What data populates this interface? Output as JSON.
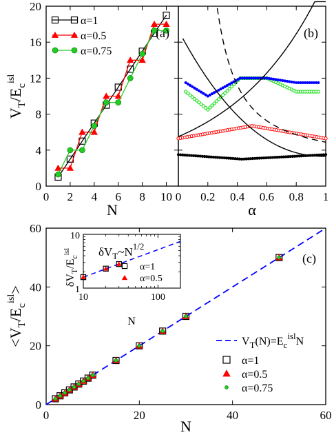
{
  "chart_data": [
    {
      "id": "a",
      "type": "line",
      "panel_label": "(a)",
      "xlabel": "N",
      "ylabel_main": "V",
      "ylabel_sub": "T",
      "ylabel_mid": "/E",
      "ylabel_sub2": "c",
      "ylabel_sup": "isl",
      "xlim": [
        0,
        11
      ],
      "ylim": [
        0,
        20
      ],
      "xticks": [
        0,
        2,
        4,
        6,
        8,
        10
      ],
      "yticks": [
        0,
        4,
        8,
        12,
        16,
        20
      ],
      "legend_position": "top-left",
      "series": [
        {
          "name": "α=1",
          "color": "#000000",
          "marker": "open-square",
          "x": [
            1,
            2,
            3,
            4,
            5,
            6,
            7,
            8,
            9,
            10
          ],
          "y": [
            1,
            3,
            5,
            7,
            9,
            11,
            13,
            15,
            17,
            19
          ]
        },
        {
          "name": "α=0.5",
          "color": "#ff0000",
          "marker": "filled-triangle",
          "x": [
            1,
            2,
            3,
            4,
            5,
            6,
            7,
            8,
            9,
            10
          ],
          "y": [
            2,
            2,
            6,
            6,
            10,
            10,
            14,
            14,
            18,
            18
          ]
        },
        {
          "name": "α=0.75",
          "color": "#22cc22",
          "marker": "filled-circle",
          "x": [
            1,
            2,
            3,
            4,
            5,
            6,
            7,
            8,
            9,
            10
          ],
          "y": [
            1.3,
            4,
            4,
            6.7,
            9.3,
            9.3,
            12,
            14.7,
            17.3,
            17.3
          ]
        }
      ]
    },
    {
      "id": "b",
      "type": "scatter",
      "panel_label": "(b)",
      "xlabel": "α",
      "xlim": [
        0,
        1
      ],
      "ylim": [
        0,
        20
      ],
      "xticks": [
        0,
        0.2,
        0.4,
        0.6,
        0.8,
        1
      ],
      "xtick_labels": [
        "0",
        "0.2",
        "0.4",
        "0.6",
        "0.8",
        "1"
      ],
      "dot_series": [
        {
          "color": "#000000",
          "filled": true,
          "note": "N=1 (black)",
          "x": [
            0,
            0.43,
            1
          ],
          "y": [
            3.5,
            3,
            3.5
          ],
          "peaks_y": 3.0,
          "edge_y": 3.5
        },
        {
          "color": "#ff0000",
          "filled": false,
          "note": "N=2 (red)",
          "x": [
            0,
            0.5,
            1
          ],
          "y": [
            5.3,
            6.7,
            5.3
          ]
        },
        {
          "color": "#00dd00",
          "filled": false,
          "note": "N=3 (green)",
          "x": [
            0.05,
            0.2,
            0.42,
            0.6,
            0.8,
            0.95
          ],
          "y": [
            10.5,
            8.5,
            12,
            12,
            10.5,
            10.5
          ]
        },
        {
          "color": "#0000ff",
          "filled": true,
          "note": "N=4 (blue)",
          "x": [
            0.05,
            0.2,
            0.42,
            0.6,
            0.8,
            0.95
          ],
          "y": [
            11.5,
            10,
            12,
            12,
            11.5,
            11.5
          ]
        }
      ],
      "curves": [
        {
          "style": "solid",
          "color": "#000000",
          "note": "rising",
          "x": [
            0,
            0.5,
            1
          ],
          "y": [
            5.5,
            9,
            20
          ]
        },
        {
          "style": "solid",
          "color": "#000000",
          "note": "falling",
          "x": [
            0,
            0.3,
            1
          ],
          "y": [
            20,
            10,
            3.3
          ]
        },
        {
          "style": "dashed",
          "color": "#000000",
          "note": "steep",
          "x": [
            0.22,
            0.5,
            1
          ],
          "y": [
            20,
            8.7,
            4.1
          ]
        }
      ]
    },
    {
      "id": "c",
      "type": "scatter",
      "panel_label": "(c)",
      "xlabel": "N",
      "ylabel": "<V_T/E_c^isl>",
      "xlim": [
        0,
        60
      ],
      "ylim": [
        0,
        60
      ],
      "xticks": [
        0,
        20,
        40,
        60
      ],
      "yticks": [
        0,
        20,
        40,
        60
      ],
      "fit_line": {
        "label_main": "V",
        "label_sub": "T",
        "label_mid": "(N)=E",
        "label_sub2": "c",
        "label_sup": "isl",
        "label_tail": "N",
        "x": [
          0,
          60
        ],
        "y": [
          0,
          60
        ],
        "color": "#0000ff",
        "style": "dashed"
      },
      "legend_position": "bottom-right",
      "x": [
        2,
        3,
        4,
        5,
        6,
        7,
        8,
        9,
        10,
        15,
        20,
        25,
        30,
        50
      ],
      "series": [
        {
          "name": "α=1",
          "color": "#000000",
          "marker": "open-square",
          "y": [
            2,
            3,
            4,
            5,
            6,
            7,
            8,
            9,
            10,
            15,
            20,
            25,
            30,
            50
          ]
        },
        {
          "name": "α=0.5",
          "color": "#ff0000",
          "marker": "filled-triangle",
          "y": [
            2,
            3,
            4,
            5,
            6,
            7,
            8,
            9,
            10,
            15,
            20,
            25,
            30,
            50
          ]
        },
        {
          "name": "α=0.75",
          "color": "#22cc22",
          "marker": "filled-circle",
          "y": [
            2,
            3,
            4,
            5,
            6,
            7,
            8,
            9,
            10,
            15,
            20,
            25,
            30,
            50
          ]
        }
      ],
      "inset": {
        "type": "scatter",
        "scale": "log-log",
        "xlabel": "N",
        "ylabel_main": "δV",
        "ylabel_sub": "T",
        "ylabel_mid": "/E",
        "ylabel_sub2": "c",
        "ylabel_sup": "isl",
        "xticks": [
          10,
          100
        ],
        "yticks": [
          1,
          10
        ],
        "xlim": [
          10,
          200
        ],
        "ylim": [
          1,
          10
        ],
        "annotation_main": "δV",
        "annotation_sub": "T",
        "annotation_mid": "~N",
        "annotation_sup": "1/2",
        "fit_line": {
          "color": "#0000ff",
          "style": "dashed",
          "x": [
            10,
            200
          ],
          "y": [
            1.6,
            7.4
          ]
        },
        "x": [
          10,
          20,
          30
        ],
        "series": [
          {
            "name": "α=1",
            "color": "#000000",
            "marker": "open-square",
            "y": [
              1.6,
              2.3,
              2.8
            ]
          },
          {
            "name": "α=0.5",
            "color": "#ff0000",
            "marker": "filled-triangle",
            "y": [
              1.6,
              2.3,
              2.8
            ]
          }
        ]
      }
    }
  ]
}
